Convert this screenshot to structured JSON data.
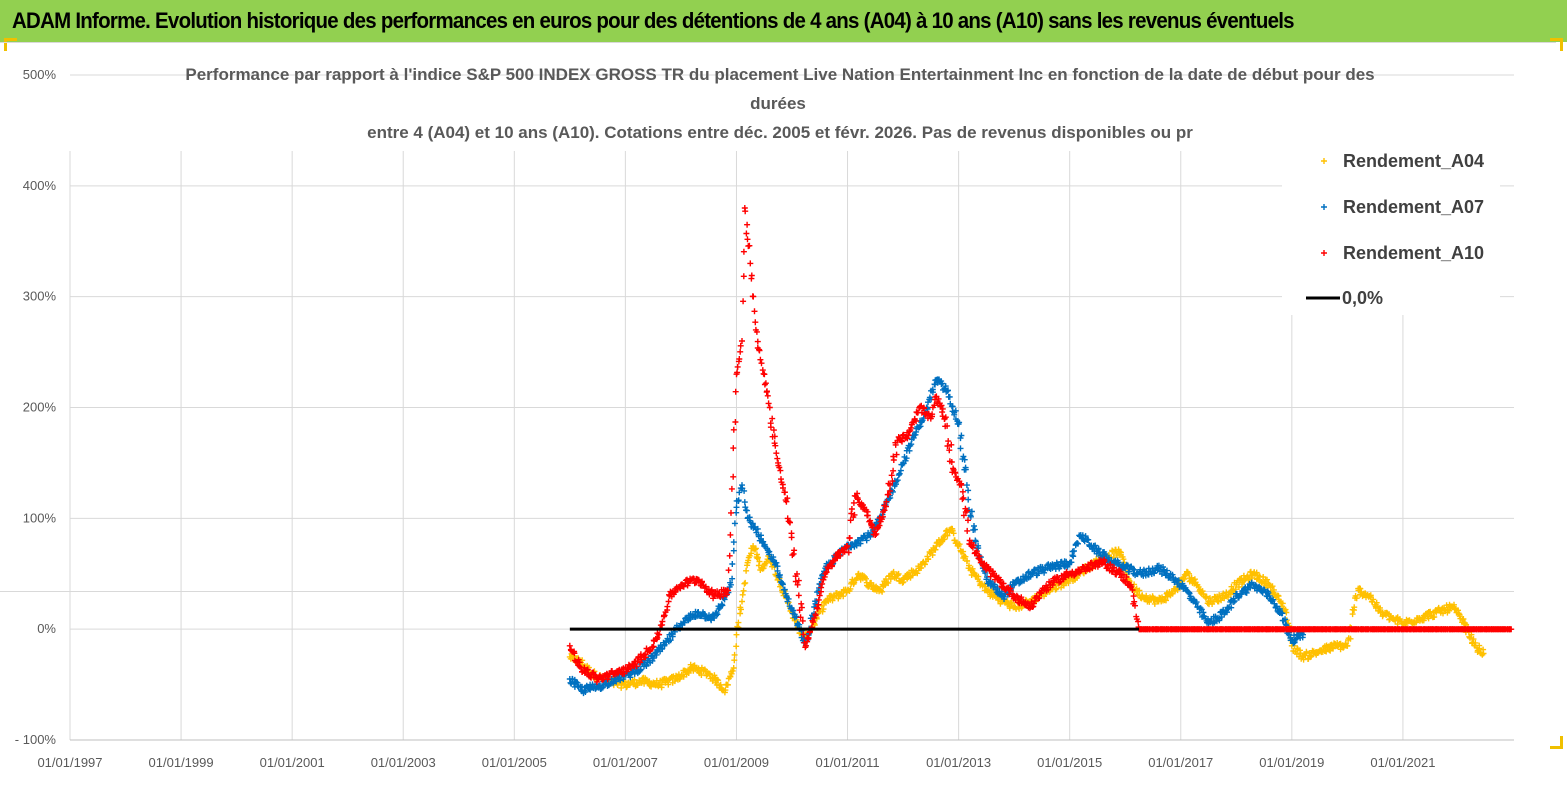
{
  "header": {
    "title": "ADAM Informe. Evolution historique des performances en euros pour des détentions de 4 ans (A04) à 10 ans (A10) sans les revenus éventuels"
  },
  "colors": {
    "banner": "#92d050",
    "A04": "#ffc000",
    "A07": "#0070c0",
    "A10": "#ff0000",
    "zero_line": "#000000",
    "grid": "#d9d9d9"
  },
  "chart_data": {
    "type": "scatter",
    "title_lines": [
      "Performance par rapport à l'indice S&P 500 INDEX GROSS TR  du placement Live Nation Entertainment Inc en fonction de la date de début pour des",
      "durées",
      "entre 4 (A04) et 10 ans (A10). Cotations entre déc. 2005 et févr. 2026. Pas de revenus disponibles ou pr"
    ],
    "xlabel": "",
    "ylabel": "",
    "x_range": [
      1997.0,
      2023.0
    ],
    "ylim": [
      -100,
      500
    ],
    "y_ticks": [
      -100,
      0,
      100,
      200,
      300,
      400,
      500
    ],
    "y_tick_labels": [
      "- 100%",
      "0%",
      "100%",
      "200%",
      "300%",
      "400%",
      "500%"
    ],
    "x_ticks": [
      1997,
      1999,
      2001,
      2003,
      2005,
      2007,
      2009,
      2011,
      2013,
      2015,
      2017,
      2019,
      2021
    ],
    "x_tick_labels": [
      "01/01/1997",
      "01/01/1999",
      "01/01/2001",
      "01/01/2003",
      "01/01/2005",
      "01/01/2007",
      "01/01/2009",
      "01/01/2011",
      "01/01/2013",
      "01/01/2015",
      "01/01/2017",
      "01/01/2019",
      "01/01/2021"
    ],
    "legend_position": "top-right",
    "series": [
      {
        "name": "Rendement_A04",
        "marker": "+",
        "color": "#ffc000",
        "points": [
          [
            2006.0,
            -25
          ],
          [
            2006.2,
            -30
          ],
          [
            2006.4,
            -40
          ],
          [
            2006.7,
            -48
          ],
          [
            2007.0,
            -50
          ],
          [
            2007.3,
            -47
          ],
          [
            2007.6,
            -50
          ],
          [
            2007.9,
            -45
          ],
          [
            2008.2,
            -35
          ],
          [
            2008.5,
            -40
          ],
          [
            2008.8,
            -55
          ],
          [
            2008.95,
            -35
          ],
          [
            2009.0,
            -5
          ],
          [
            2009.1,
            25
          ],
          [
            2009.2,
            60
          ],
          [
            2009.3,
            75
          ],
          [
            2009.45,
            55
          ],
          [
            2009.6,
            65
          ],
          [
            2009.8,
            40
          ],
          [
            2010.0,
            15
          ],
          [
            2010.2,
            -10
          ],
          [
            2010.4,
            5
          ],
          [
            2010.6,
            25
          ],
          [
            2010.8,
            30
          ],
          [
            2011.0,
            35
          ],
          [
            2011.2,
            50
          ],
          [
            2011.4,
            40
          ],
          [
            2011.6,
            35
          ],
          [
            2011.8,
            50
          ],
          [
            2012.0,
            45
          ],
          [
            2012.3,
            55
          ],
          [
            2012.6,
            75
          ],
          [
            2012.85,
            90
          ],
          [
            2013.0,
            75
          ],
          [
            2013.2,
            55
          ],
          [
            2013.5,
            35
          ],
          [
            2013.8,
            25
          ],
          [
            2014.0,
            20
          ],
          [
            2014.3,
            25
          ],
          [
            2014.6,
            35
          ],
          [
            2015.0,
            45
          ],
          [
            2015.3,
            55
          ],
          [
            2015.6,
            65
          ],
          [
            2015.9,
            70
          ],
          [
            2016.1,
            40
          ],
          [
            2016.3,
            30
          ],
          [
            2016.6,
            25
          ],
          [
            2016.9,
            35
          ],
          [
            2017.1,
            50
          ],
          [
            2017.3,
            40
          ],
          [
            2017.5,
            25
          ],
          [
            2017.8,
            30
          ],
          [
            2018.0,
            40
          ],
          [
            2018.3,
            50
          ],
          [
            2018.6,
            40
          ],
          [
            2018.9,
            15
          ],
          [
            2019.0,
            -15
          ],
          [
            2019.2,
            -25
          ],
          [
            2019.5,
            -20
          ],
          [
            2019.8,
            -15
          ],
          [
            2020.0,
            -15
          ],
          [
            2020.2,
            35
          ],
          [
            2020.4,
            30
          ],
          [
            2020.6,
            15
          ],
          [
            2020.8,
            10
          ],
          [
            2021.0,
            5
          ],
          [
            2021.3,
            10
          ],
          [
            2021.6,
            15
          ],
          [
            2021.9,
            20
          ],
          [
            2022.1,
            5
          ],
          [
            2022.3,
            -15
          ],
          [
            2022.45,
            -22
          ]
        ]
      },
      {
        "name": "Rendement_A07",
        "marker": "+",
        "color": "#0070c0",
        "points": [
          [
            2006.0,
            -45
          ],
          [
            2006.2,
            -55
          ],
          [
            2006.5,
            -52
          ],
          [
            2006.8,
            -45
          ],
          [
            2007.1,
            -40
          ],
          [
            2007.4,
            -30
          ],
          [
            2007.7,
            -15
          ],
          [
            2008.0,
            5
          ],
          [
            2008.3,
            15
          ],
          [
            2008.6,
            10
          ],
          [
            2008.9,
            40
          ],
          [
            2009.0,
            110
          ],
          [
            2009.1,
            130
          ],
          [
            2009.2,
            100
          ],
          [
            2009.35,
            90
          ],
          [
            2009.5,
            75
          ],
          [
            2009.7,
            60
          ],
          [
            2009.9,
            30
          ],
          [
            2010.1,
            5
          ],
          [
            2010.25,
            -15
          ],
          [
            2010.4,
            20
          ],
          [
            2010.6,
            55
          ],
          [
            2010.8,
            65
          ],
          [
            2011.0,
            75
          ],
          [
            2011.2,
            80
          ],
          [
            2011.4,
            85
          ],
          [
            2011.6,
            100
          ],
          [
            2011.8,
            125
          ],
          [
            2012.0,
            150
          ],
          [
            2012.2,
            175
          ],
          [
            2012.4,
            195
          ],
          [
            2012.6,
            225
          ],
          [
            2012.8,
            215
          ],
          [
            2013.0,
            185
          ],
          [
            2013.15,
            130
          ],
          [
            2013.3,
            80
          ],
          [
            2013.5,
            45
          ],
          [
            2013.8,
            30
          ],
          [
            2014.0,
            40
          ],
          [
            2014.3,
            50
          ],
          [
            2014.6,
            55
          ],
          [
            2015.0,
            60
          ],
          [
            2015.2,
            85
          ],
          [
            2015.5,
            70
          ],
          [
            2015.8,
            60
          ],
          [
            2016.0,
            55
          ],
          [
            2016.3,
            50
          ],
          [
            2016.6,
            55
          ],
          [
            2016.9,
            45
          ],
          [
            2017.1,
            35
          ],
          [
            2017.3,
            20
          ],
          [
            2017.5,
            5
          ],
          [
            2017.8,
            15
          ],
          [
            2018.0,
            30
          ],
          [
            2018.3,
            40
          ],
          [
            2018.6,
            30
          ],
          [
            2018.8,
            15
          ],
          [
            2019.0,
            -10
          ],
          [
            2019.2,
            -5
          ]
        ]
      },
      {
        "name": "Rendement_A10",
        "marker": "+",
        "color": "#ff0000",
        "points": [
          [
            2006.0,
            -15
          ],
          [
            2006.2,
            -35
          ],
          [
            2006.5,
            -45
          ],
          [
            2006.8,
            -40
          ],
          [
            2007.1,
            -35
          ],
          [
            2007.4,
            -20
          ],
          [
            2007.6,
            -5
          ],
          [
            2007.8,
            30
          ],
          [
            2008.0,
            40
          ],
          [
            2008.3,
            45
          ],
          [
            2008.6,
            30
          ],
          [
            2008.85,
            35
          ],
          [
            2009.0,
            230
          ],
          [
            2009.1,
            260
          ],
          [
            2009.15,
            380
          ],
          [
            2009.25,
            330
          ],
          [
            2009.35,
            270
          ],
          [
            2009.45,
            240
          ],
          [
            2009.6,
            200
          ],
          [
            2009.75,
            150
          ],
          [
            2009.9,
            115
          ],
          [
            2010.1,
            40
          ],
          [
            2010.25,
            -15
          ],
          [
            2010.4,
            10
          ],
          [
            2010.6,
            50
          ],
          [
            2010.8,
            65
          ],
          [
            2011.0,
            75
          ],
          [
            2011.15,
            120
          ],
          [
            2011.3,
            110
          ],
          [
            2011.5,
            85
          ],
          [
            2011.7,
            115
          ],
          [
            2011.9,
            170
          ],
          [
            2012.1,
            175
          ],
          [
            2012.3,
            200
          ],
          [
            2012.5,
            190
          ],
          [
            2012.6,
            210
          ],
          [
            2012.75,
            190
          ],
          [
            2012.9,
            145
          ],
          [
            2013.05,
            130
          ],
          [
            2013.2,
            80
          ],
          [
            2013.4,
            60
          ],
          [
            2013.7,
            45
          ],
          [
            2014.0,
            30
          ],
          [
            2014.3,
            20
          ],
          [
            2014.5,
            35
          ],
          [
            2014.8,
            45
          ],
          [
            2015.0,
            50
          ],
          [
            2015.3,
            55
          ],
          [
            2015.6,
            60
          ],
          [
            2015.9,
            50
          ],
          [
            2016.1,
            40
          ],
          [
            2016.25,
            0
          ],
          [
            2016.5,
            0
          ],
          [
            2017.0,
            0
          ],
          [
            2017.5,
            0
          ],
          [
            2018.0,
            0
          ],
          [
            2018.5,
            0
          ],
          [
            2019.0,
            0
          ],
          [
            2019.5,
            0
          ],
          [
            2020.0,
            0
          ],
          [
            2020.5,
            0
          ],
          [
            2021.0,
            0
          ],
          [
            2021.5,
            0
          ],
          [
            2022.0,
            0
          ],
          [
            2022.5,
            0
          ],
          [
            2022.95,
            0
          ]
        ]
      },
      {
        "name": "0,0%",
        "marker": "line",
        "color": "#000000",
        "points": [
          [
            2006.0,
            0
          ],
          [
            2022.95,
            0
          ]
        ]
      }
    ]
  }
}
